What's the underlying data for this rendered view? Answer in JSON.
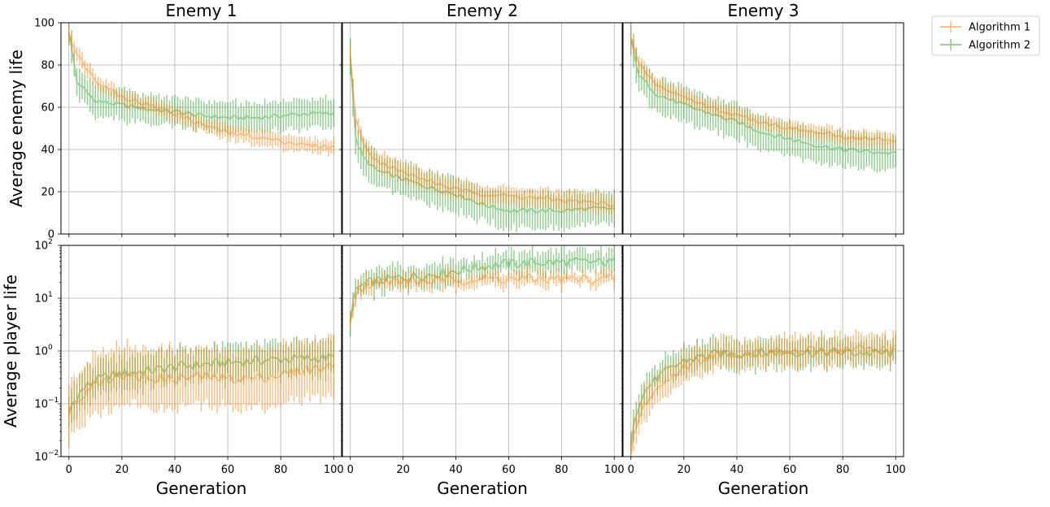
{
  "chart_data": {
    "type": "line",
    "panel_titles": [
      "Enemy 1",
      "Enemy 2",
      "Enemy 3"
    ],
    "row_ylabels": [
      "Average enemy life",
      "Average player life"
    ],
    "xlabel": "Generation",
    "xlim": [
      -3,
      103
    ],
    "xticks": [
      0,
      20,
      40,
      60,
      80,
      100
    ],
    "top_row": {
      "ylim": [
        0,
        100
      ],
      "yticks": [
        0,
        20,
        40,
        60,
        80,
        100
      ],
      "scale": "linear"
    },
    "bottom_row": {
      "ylim": [
        0.01,
        100
      ],
      "scale": "log",
      "ytick_bases": [
        "10",
        "10",
        "10",
        "10",
        "10"
      ],
      "ytick_exps": [
        "−2",
        "−1",
        "0",
        "1",
        "2"
      ]
    },
    "legend": {
      "placement": "outside top-right",
      "entries": [
        "Algorithm 1",
        "Algorithm 2"
      ]
    },
    "colors": {
      "Algorithm 1": "#ff7f0e",
      "Algorithm 2": "#2ca02c",
      "grid": "#b0b0b0"
    },
    "grid": true,
    "series_style": "mean line with per-generation error bars, alpha 0.5",
    "panels": [
      {
        "title": "Enemy 1",
        "enemy_life": {
          "Algorithm 1": {
            "mean_keypoints": [
              [
                0,
                95
              ],
              [
                3,
                85
              ],
              [
                10,
                73
              ],
              [
                20,
                65
              ],
              [
                30,
                61
              ],
              [
                40,
                57
              ],
              [
                50,
                52
              ],
              [
                60,
                48
              ],
              [
                70,
                46
              ],
              [
                80,
                44
              ],
              [
                90,
                42
              ],
              [
                100,
                41
              ]
            ],
            "err": 3.5
          },
          "Algorithm 2": {
            "mean_keypoints": [
              [
                0,
                96
              ],
              [
                3,
                72
              ],
              [
                10,
                63
              ],
              [
                20,
                61
              ],
              [
                30,
                59
              ],
              [
                40,
                58
              ],
              [
                50,
                56
              ],
              [
                60,
                55
              ],
              [
                70,
                55
              ],
              [
                80,
                56
              ],
              [
                90,
                57
              ],
              [
                100,
                57
              ]
            ],
            "err": 7
          }
        },
        "player_life": {
          "Algorithm 1": {
            "mean_keypoints": [
              [
                0,
                0.07
              ],
              [
                5,
                0.15
              ],
              [
                10,
                0.25
              ],
              [
                20,
                0.35
              ],
              [
                30,
                0.3
              ],
              [
                40,
                0.3
              ],
              [
                50,
                0.33
              ],
              [
                60,
                0.3
              ],
              [
                70,
                0.3
              ],
              [
                80,
                0.35
              ],
              [
                90,
                0.45
              ],
              [
                100,
                0.5
              ]
            ],
            "err_factor": 3
          },
          "Algorithm 2": {
            "mean_keypoints": [
              [
                0,
                0.07
              ],
              [
                5,
                0.18
              ],
              [
                10,
                0.28
              ],
              [
                20,
                0.38
              ],
              [
                30,
                0.42
              ],
              [
                40,
                0.5
              ],
              [
                50,
                0.55
              ],
              [
                60,
                0.6
              ],
              [
                70,
                0.65
              ],
              [
                80,
                0.7
              ],
              [
                90,
                0.72
              ],
              [
                100,
                0.75
              ]
            ],
            "err_factor": 1.8
          }
        }
      },
      {
        "title": "Enemy 2",
        "enemy_life": {
          "Algorithm 1": {
            "mean_keypoints": [
              [
                0,
                84
              ],
              [
                2,
                55
              ],
              [
                5,
                42
              ],
              [
                10,
                35
              ],
              [
                20,
                29
              ],
              [
                30,
                25
              ],
              [
                40,
                21
              ],
              [
                50,
                19
              ],
              [
                60,
                18
              ],
              [
                70,
                17
              ],
              [
                80,
                16
              ],
              [
                90,
                15
              ],
              [
                100,
                14
              ]
            ],
            "err": 4.5
          },
          "Algorithm 2": {
            "mean_keypoints": [
              [
                0,
                85
              ],
              [
                2,
                45
              ],
              [
                5,
                36
              ],
              [
                10,
                30
              ],
              [
                20,
                26
              ],
              [
                30,
                22
              ],
              [
                40,
                19
              ],
              [
                50,
                14
              ],
              [
                60,
                11
              ],
              [
                70,
                11
              ],
              [
                80,
                11
              ],
              [
                90,
                12
              ],
              [
                100,
                12
              ]
            ],
            "err": 8
          }
        },
        "player_life": {
          "Algorithm 1": {
            "mean_keypoints": [
              [
                0,
                4
              ],
              [
                3,
                15
              ],
              [
                6,
                18
              ],
              [
                10,
                20
              ],
              [
                20,
                21
              ],
              [
                30,
                21
              ],
              [
                40,
                22
              ],
              [
                50,
                23
              ],
              [
                60,
                23
              ],
              [
                70,
                23
              ],
              [
                80,
                23
              ],
              [
                90,
                23
              ],
              [
                100,
                23
              ]
            ],
            "err_factor": 1.12
          },
          "Algorithm 2": {
            "mean_keypoints": [
              [
                0,
                4
              ],
              [
                3,
                16
              ],
              [
                6,
                19
              ],
              [
                10,
                21
              ],
              [
                20,
                25
              ],
              [
                30,
                28
              ],
              [
                40,
                33
              ],
              [
                50,
                40
              ],
              [
                60,
                45
              ],
              [
                70,
                47
              ],
              [
                80,
                48
              ],
              [
                90,
                48
              ],
              [
                100,
                48
              ]
            ],
            "err_factor": 1.35
          }
        }
      },
      {
        "title": "Enemy 3",
        "enemy_life": {
          "Algorithm 1": {
            "mean_keypoints": [
              [
                0,
                93
              ],
              [
                3,
                80
              ],
              [
                10,
                70
              ],
              [
                20,
                65
              ],
              [
                30,
                60
              ],
              [
                40,
                56
              ],
              [
                50,
                53
              ],
              [
                60,
                50
              ],
              [
                70,
                48
              ],
              [
                80,
                46
              ],
              [
                90,
                45
              ],
              [
                100,
                44
              ]
            ],
            "err": 3.5
          },
          "Algorithm 2": {
            "mean_keypoints": [
              [
                0,
                92
              ],
              [
                3,
                75
              ],
              [
                10,
                66
              ],
              [
                20,
                61
              ],
              [
                30,
                57
              ],
              [
                40,
                53
              ],
              [
                50,
                48
              ],
              [
                60,
                45
              ],
              [
                70,
                42
              ],
              [
                80,
                40
              ],
              [
                90,
                39
              ],
              [
                100,
                38
              ]
            ],
            "err": 8
          }
        },
        "player_life": {
          "Algorithm 1": {
            "mean_keypoints": [
              [
                0,
                0.01
              ],
              [
                3,
                0.05
              ],
              [
                8,
                0.15
              ],
              [
                15,
                0.3
              ],
              [
                20,
                0.5
              ],
              [
                30,
                0.8
              ],
              [
                40,
                0.9
              ],
              [
                50,
                0.95
              ],
              [
                60,
                0.95
              ],
              [
                70,
                1.0
              ],
              [
                80,
                1.05
              ],
              [
                90,
                1.1
              ],
              [
                100,
                1.1
              ]
            ],
            "err_factor": 1.6
          },
          "Algorithm 2": {
            "mean_keypoints": [
              [
                0,
                0.02
              ],
              [
                3,
                0.1
              ],
              [
                8,
                0.25
              ],
              [
                15,
                0.45
              ],
              [
                20,
                0.65
              ],
              [
                30,
                0.85
              ],
              [
                40,
                0.9
              ],
              [
                50,
                0.95
              ],
              [
                60,
                0.95
              ],
              [
                70,
                0.95
              ],
              [
                80,
                0.95
              ],
              [
                90,
                0.9
              ],
              [
                100,
                0.9
              ]
            ],
            "err_factor": 1.5
          }
        }
      }
    ]
  }
}
